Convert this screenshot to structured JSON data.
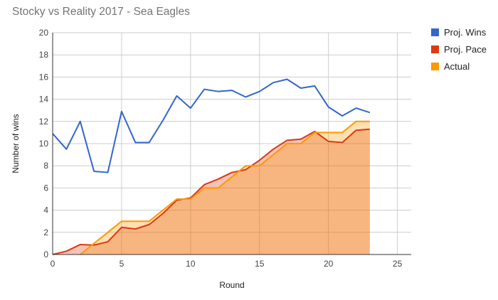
{
  "chart_data": {
    "type": "line",
    "title": "Stocky vs Reality 2017 - Sea Eagles",
    "xlabel": "Round",
    "ylabel": "Number of wins",
    "xlim": [
      0,
      26
    ],
    "ylim": [
      0,
      20
    ],
    "x_ticks": [
      0,
      5,
      10,
      15,
      20,
      25
    ],
    "y_ticks": [
      0,
      2,
      4,
      6,
      8,
      10,
      12,
      14,
      16,
      18,
      20
    ],
    "grid": true,
    "legend_position": "right",
    "series": [
      {
        "name": "Proj. Wins",
        "color": "#3366cc",
        "style": "line",
        "points": [
          [
            0,
            10.9
          ],
          [
            1,
            9.5
          ],
          [
            2,
            12.0
          ],
          [
            3,
            7.5
          ],
          [
            4,
            7.4
          ],
          [
            5,
            12.9
          ],
          [
            6,
            10.1
          ],
          [
            7,
            10.1
          ],
          [
            8,
            12.1
          ],
          [
            9,
            14.3
          ],
          [
            10,
            13.2
          ],
          [
            11,
            14.9
          ],
          [
            12,
            14.7
          ],
          [
            13,
            14.8
          ],
          [
            14,
            14.2
          ],
          [
            15,
            14.7
          ],
          [
            16,
            15.5
          ],
          [
            17,
            15.8
          ],
          [
            18,
            15.0
          ],
          [
            19,
            15.2
          ],
          [
            20,
            13.3
          ],
          [
            21,
            12.5
          ],
          [
            22,
            13.2
          ],
          [
            23,
            12.8
          ]
        ]
      },
      {
        "name": "Proj. Pace",
        "color": "#dc3912",
        "style": "area",
        "points": [
          [
            0,
            0
          ],
          [
            1,
            0.3
          ],
          [
            2,
            0.9
          ],
          [
            3,
            0.85
          ],
          [
            4,
            1.15
          ],
          [
            5,
            2.45
          ],
          [
            6,
            2.3
          ],
          [
            7,
            2.7
          ],
          [
            8,
            3.7
          ],
          [
            9,
            4.9
          ],
          [
            10,
            5.1
          ],
          [
            11,
            6.3
          ],
          [
            12,
            6.8
          ],
          [
            13,
            7.4
          ],
          [
            14,
            7.65
          ],
          [
            15,
            8.5
          ],
          [
            16,
            9.5
          ],
          [
            17,
            10.3
          ],
          [
            18,
            10.4
          ],
          [
            19,
            11.1
          ],
          [
            20,
            10.2
          ],
          [
            21,
            10.1
          ],
          [
            22,
            11.2
          ],
          [
            23,
            11.3
          ]
        ]
      },
      {
        "name": "Actual",
        "color": "#ff9900",
        "style": "area",
        "points": [
          [
            2,
            0
          ],
          [
            3,
            1
          ],
          [
            4,
            2
          ],
          [
            5,
            3
          ],
          [
            6,
            3
          ],
          [
            7,
            3
          ],
          [
            8,
            4
          ],
          [
            9,
            5
          ],
          [
            10,
            5
          ],
          [
            11,
            6
          ],
          [
            12,
            6
          ],
          [
            13,
            7
          ],
          [
            14,
            8
          ],
          [
            15,
            8
          ],
          [
            16,
            9
          ],
          [
            17,
            10
          ],
          [
            18,
            10
          ],
          [
            19,
            11
          ],
          [
            20,
            11
          ],
          [
            21,
            11
          ],
          [
            22,
            12
          ],
          [
            23,
            12
          ]
        ]
      }
    ]
  }
}
